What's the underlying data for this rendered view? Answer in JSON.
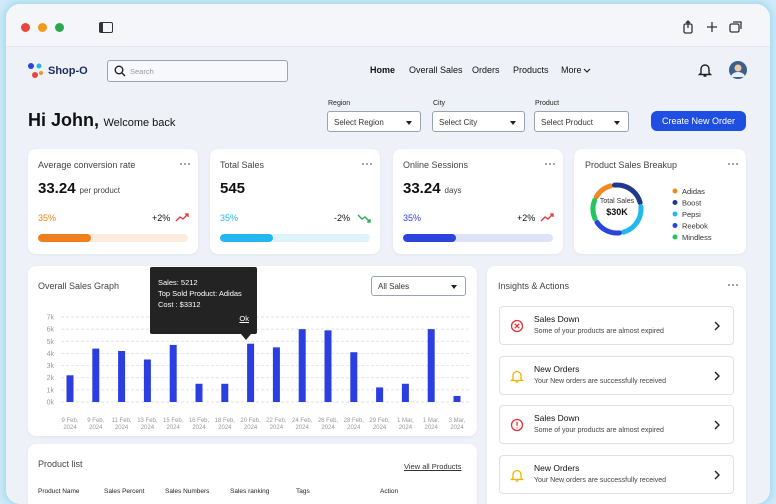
{
  "nav": {
    "logo": "Shop-O",
    "search_placeholder": "Search",
    "links": [
      "Home",
      "Overall Sales",
      "Orders",
      "Products",
      "More"
    ]
  },
  "header": {
    "greeting": "Hi John,",
    "welcome": "Welcome back",
    "filters": [
      {
        "label": "Region",
        "placeholder": "Select Region"
      },
      {
        "label": "City",
        "placeholder": "Select City"
      },
      {
        "label": "Product",
        "placeholder": "Select Product"
      }
    ],
    "button": "Create New Order"
  },
  "stats": [
    {
      "title": "Average conversion rate",
      "value": "33.24",
      "unit": "per product",
      "progress": {
        "value": 35,
        "label": "35%"
      },
      "change": "+2%",
      "trend": "up",
      "color": "#f07e1d"
    },
    {
      "title": "Total Sales",
      "value": "545",
      "progress": {
        "value": 35,
        "label": "35%"
      },
      "change": "-2%",
      "trend": "down",
      "color": "#22b8ee"
    },
    {
      "title": "Online Sessions",
      "value": "33.24",
      "unit": "days",
      "progress": {
        "value": 35,
        "label": "35%"
      },
      "change": "+2%",
      "trend": "up",
      "color": "#2b44dd"
    }
  ],
  "sales_breakup": {
    "title": "Product Sales Breakup",
    "center_label": "Total Sales",
    "center_value": "$30K",
    "items": [
      {
        "name": "Adidas",
        "color": "#f0891f",
        "value": 15
      },
      {
        "name": "Boost",
        "color": "#1f3a8c",
        "value": 25
      },
      {
        "name": "Pepsi",
        "color": "#22b8ee",
        "value": 25
      },
      {
        "name": "Reebok",
        "color": "#2b44dd",
        "value": 20
      },
      {
        "name": "Mindless",
        "color": "#22c55e",
        "value": 15
      }
    ]
  },
  "chart_data": {
    "type": "bar",
    "title": "Overall Sales Graph",
    "dropdown": "All Sales",
    "color": "#2b3fe0",
    "grid": true,
    "categories": [
      "9 Feb, 2024",
      "9 Feb, 2024",
      "11 Feb, 2024",
      "13 Feb, 2024",
      "15 Feb, 2024",
      "16 Feb, 2024",
      "18 Feb, 2024",
      "20 Feb, 2024",
      "22 Feb, 2024",
      "24 Feb, 2024",
      "26 Feb, 2024",
      "28 Feb, 2024",
      "29 Feb, 2024",
      "1 Mar, 2024",
      "1 Mar, 2024",
      "3 Mar, 2024"
    ],
    "values": [
      2200,
      4400,
      4200,
      3500,
      4700,
      1500,
      1500,
      4800,
      4500,
      6000,
      5900,
      4100,
      1200,
      1500,
      6000,
      500
    ],
    "ylim": [
      0,
      7000
    ],
    "yticks": [
      {
        "value": 0,
        "label": "0k"
      },
      {
        "value": 1000,
        "label": "1k"
      },
      {
        "value": 2000,
        "label": "2k"
      },
      {
        "value": 3000,
        "label": "3k"
      },
      {
        "value": 4000,
        "label": "4k"
      },
      {
        "value": 5000,
        "label": "5k"
      },
      {
        "value": 6000,
        "label": "6k"
      },
      {
        "value": 7000,
        "label": "7k"
      }
    ]
  },
  "tooltip": {
    "lines": [
      "Sales: 5212",
      "Top Sold Product: Adidas",
      "Cost : $3312"
    ],
    "button": "Ok"
  },
  "insights": {
    "title": "Insights & Actions",
    "items": [
      {
        "title": "Sales Down",
        "text": "Some of your products are almost expired",
        "kind": "error"
      },
      {
        "title": "New Orders",
        "text": "Your New orders are successfully received",
        "kind": "bell"
      },
      {
        "title": "Sales Down",
        "text": "Some of your products are almost expired",
        "kind": "warning"
      },
      {
        "title": "New Orders",
        "text": "Your New orders are successfully received",
        "kind": "bell"
      }
    ]
  },
  "product_list": {
    "title": "Product list",
    "link": "View all Products",
    "columns": [
      "Product Name",
      "Sales Percent",
      "Sales Numbers",
      "Sales ranking",
      "Tags",
      "Action"
    ]
  }
}
